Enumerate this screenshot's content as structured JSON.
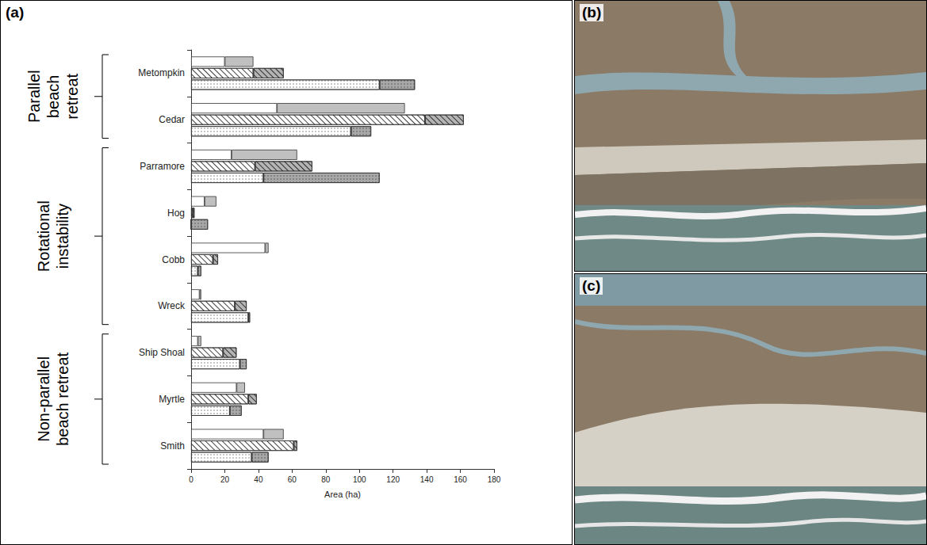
{
  "chart_data": {
    "type": "bar",
    "panel_label": "(a)",
    "orientation": "horizontal",
    "stacked": true,
    "grid": false,
    "x_label": "Area (ha)",
    "xlim": [
      0,
      180
    ],
    "xticks": [
      0,
      20,
      40,
      60,
      80,
      100,
      120,
      140,
      160,
      180
    ],
    "categories": [
      "Metompkin",
      "Cedar",
      "Parramore",
      "Hog",
      "Cobb",
      "Wreck",
      "Ship Shoal",
      "Myrtle",
      "Smith"
    ],
    "groups": [
      {
        "label": "Parallel beach retreat",
        "categories": [
          "Metompkin",
          "Cedar"
        ]
      },
      {
        "label": "Rotational instability",
        "categories": [
          "Parramore",
          "Hog",
          "Cobb",
          "Wreck"
        ]
      },
      {
        "label": "Non-parallel beach retreat",
        "categories": [
          "Ship Shoal",
          "Myrtle",
          "Smith"
        ]
      }
    ],
    "series": [
      {
        "segments": [
          {
            "color": "#ffffff",
            "marker": "none",
            "values": [
              20,
              51,
              24,
              8,
              44,
              5,
              4,
              27,
              43
            ]
          },
          {
            "color": "#c0c0c0",
            "marker": "none",
            "values": [
              17,
              76,
              39,
              7,
              2,
              1,
              2,
              5,
              12
            ]
          }
        ]
      },
      {
        "segments": [
          {
            "color": "#ffffff",
            "marker": "hatched",
            "values": [
              37,
              139,
              38,
              1,
              13,
              26,
              19,
              34,
              61
            ]
          },
          {
            "color": "#b4b4b4",
            "marker": "hatched",
            "values": [
              18,
              23,
              34,
              1,
              3,
              7,
              8,
              5,
              2
            ]
          }
        ]
      },
      {
        "segments": [
          {
            "color": "#ffffff",
            "marker": "dotted",
            "values": [
              112,
              95,
              43,
              0,
              4,
              34,
              29,
              23,
              36
            ]
          },
          {
            "color": "#a8a8a8",
            "marker": "dotted",
            "values": [
              21,
              12,
              69,
              10,
              2,
              1,
              4,
              7,
              10
            ]
          }
        ]
      }
    ]
  },
  "photos": [
    {
      "letter": "(b)"
    },
    {
      "letter": "(c)"
    }
  ]
}
